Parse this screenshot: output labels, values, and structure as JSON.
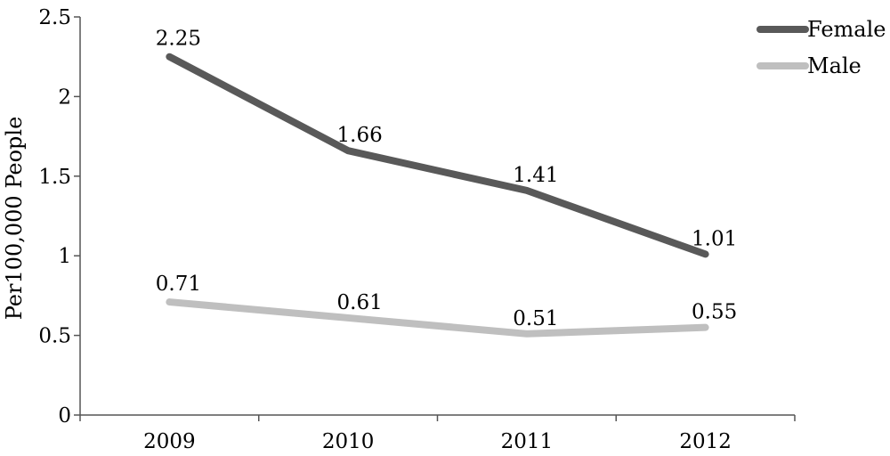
{
  "chart_data": {
    "type": "line",
    "categories": [
      "2009",
      "2010",
      "2011",
      "2012"
    ],
    "series": [
      {
        "name": "Female",
        "values": [
          2.25,
          1.66,
          1.41,
          1.01
        ],
        "color": "#595959",
        "labels": [
          "2.25",
          "1.66",
          "1.41",
          "1.01"
        ]
      },
      {
        "name": "Male",
        "values": [
          0.71,
          0.61,
          0.51,
          0.55
        ],
        "color": "#bfbfbf",
        "labels": [
          "0.71",
          "0.61",
          "0.51",
          "0.55"
        ]
      }
    ],
    "ylabel": "Per100,000 People",
    "ylim": [
      0,
      2.5
    ],
    "yticks": [
      {
        "value": 0,
        "label": "0"
      },
      {
        "value": 0.5,
        "label": "0.5"
      },
      {
        "value": 1,
        "label": "1"
      },
      {
        "value": 1.5,
        "label": "1.5"
      },
      {
        "value": 2,
        "label": "2"
      },
      {
        "value": 2.5,
        "label": "2.5"
      }
    ],
    "grid": false,
    "legend": "top-right"
  }
}
